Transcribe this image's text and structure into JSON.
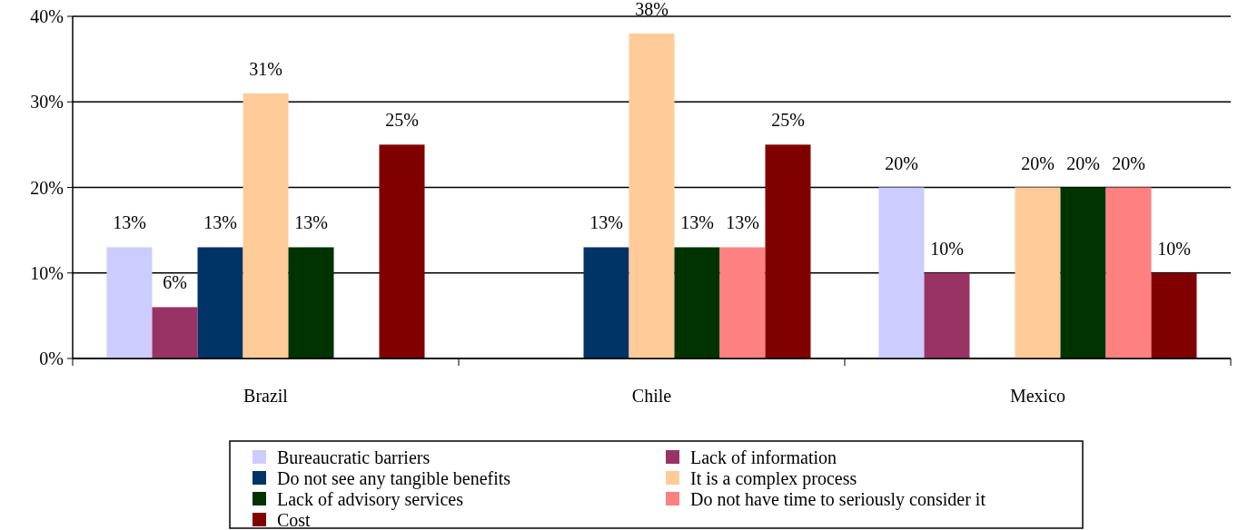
{
  "chart_data": {
    "type": "bar",
    "categories": [
      "Brazil",
      "Chile",
      "Mexico"
    ],
    "ylim": [
      0,
      40
    ],
    "yticks": [
      {
        "value": 0,
        "label": "0%"
      },
      {
        "value": 10,
        "label": "10%"
      },
      {
        "value": 20,
        "label": "20%"
      },
      {
        "value": 30,
        "label": "30%"
      },
      {
        "value": 40,
        "label": "40%"
      }
    ],
    "grid": "y",
    "legend": "bottom",
    "series": [
      {
        "name": "Bureaucratic barriers",
        "color": "#ccccff",
        "values": [
          13,
          null,
          20
        ],
        "value_labels": [
          "13%",
          null,
          "20%"
        ]
      },
      {
        "name": "Lack of information",
        "color": "#993366",
        "values": [
          6,
          null,
          10
        ],
        "value_labels": [
          "6%",
          null,
          "10%"
        ]
      },
      {
        "name": "Do not see any tangible benefits",
        "color": "#003366",
        "values": [
          13,
          13,
          null
        ],
        "value_labels": [
          "13%",
          "13%",
          null
        ]
      },
      {
        "name": "It is a complex process",
        "color": "#ffcc99",
        "values": [
          31,
          38,
          20
        ],
        "value_labels": [
          "31%",
          "38%",
          "20%"
        ]
      },
      {
        "name": "Lack of advisory services",
        "color": "#003300",
        "values": [
          13,
          13,
          20
        ],
        "value_labels": [
          "13%",
          "13%",
          "20%"
        ]
      },
      {
        "name": "Do not have time to seriously consider it",
        "color": "#ff8080",
        "values": [
          null,
          13,
          20
        ],
        "value_labels": [
          null,
          "13%",
          "20%"
        ]
      },
      {
        "name": "Cost",
        "color": "#800000",
        "values": [
          25,
          25,
          10
        ],
        "value_labels": [
          "25%",
          "25%",
          "10%"
        ]
      }
    ]
  }
}
